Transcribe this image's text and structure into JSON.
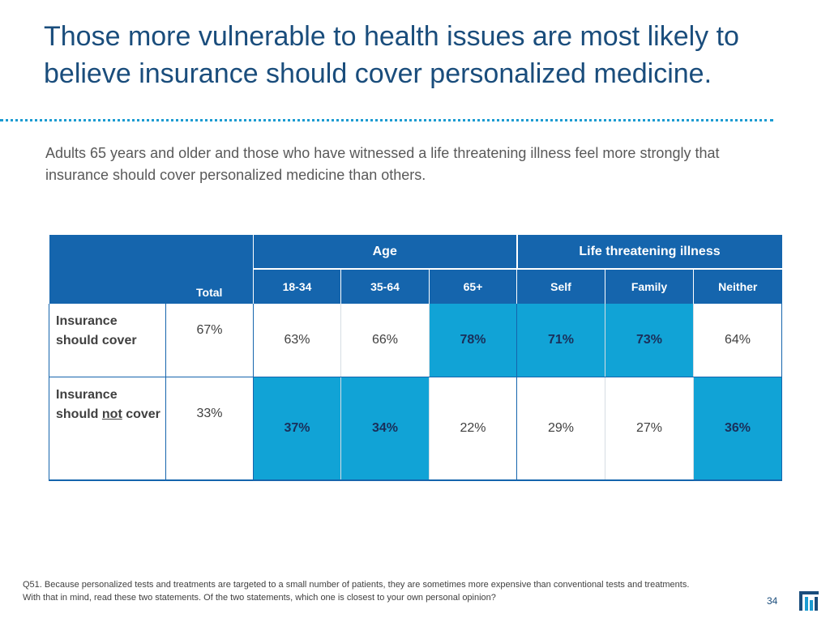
{
  "slide": {
    "title": "Those more vulnerable to health issues are most likely to believe insurance should cover personalized medicine.",
    "subtitle": "Adults 65 years and older and those who have witnessed a life threatening illness feel more strongly that insurance should cover personalized medicine than others."
  },
  "table": {
    "group_age": "Age",
    "group_illness": "Life threatening illness",
    "col_total": "Total",
    "columns": [
      "18-34",
      "35-64",
      "65+",
      "Self",
      "Family",
      "Neither"
    ],
    "rows": [
      {
        "label": "Insurance should cover",
        "total": "67%",
        "values": [
          "63%",
          "66%",
          "78%",
          "71%",
          "73%",
          "64%"
        ]
      },
      {
        "label_part1": "Insurance should ",
        "label_emph": "not",
        "label_part2": " cover",
        "total": "33%",
        "values": [
          "37%",
          "34%",
          "22%",
          "29%",
          "27%",
          "36%"
        ]
      }
    ]
  },
  "footnote": "Q51. Because personalized tests and treatments are targeted to a small number of patients, they are sometimes more expensive than conventional tests and treatments.  With that in mind, read these two statements. Of the two statements, which one is closest to your own personal opinion?",
  "page_number": "34",
  "colors": {
    "title": "#1a4d7c",
    "header": "#1565ad",
    "highlight": "#11a3d6"
  }
}
